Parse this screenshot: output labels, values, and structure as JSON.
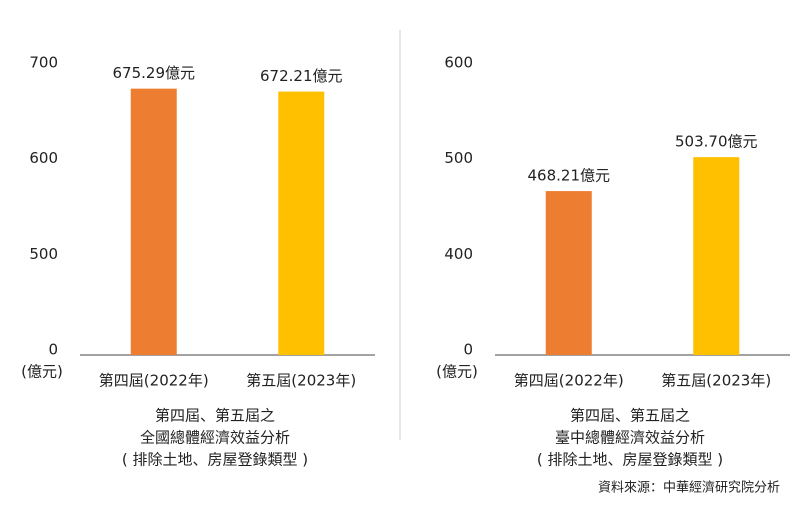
{
  "chart_data": [
    {
      "type": "bar",
      "y_unit": "(億元)",
      "categories": [
        "第四屆(2022年)",
        "第五屆(2023年)"
      ],
      "values": [
        675.29,
        672.21
      ],
      "value_labels": [
        "675.29億元",
        "672.21億元"
      ],
      "colors": [
        "#ED7D31",
        "#FFC000"
      ],
      "ylim": [
        400,
        700
      ],
      "yticks": [
        0,
        500,
        600,
        700
      ],
      "axis_break": true,
      "caption": [
        "第四屆、第五屆之",
        "全國總體經濟效益分析",
        "( 排除土地、房屋登錄類型 )"
      ]
    },
    {
      "type": "bar",
      "y_unit": "(億元)",
      "categories": [
        "第四屆(2022年)",
        "第五屆(2023年)"
      ],
      "values": [
        468.21,
        503.7
      ],
      "value_labels": [
        "468.21億元",
        "503.70億元"
      ],
      "colors": [
        "#ED7D31",
        "#FFC000"
      ],
      "ylim": [
        300,
        600
      ],
      "yticks": [
        0,
        400,
        500,
        600
      ],
      "axis_break": true,
      "caption": [
        "第四屆、第五屆之",
        "臺中總體經濟效益分析",
        "( 排除土地、房屋登錄類型 )"
      ]
    }
  ],
  "source": "資料來源：中華經濟研究院分析"
}
